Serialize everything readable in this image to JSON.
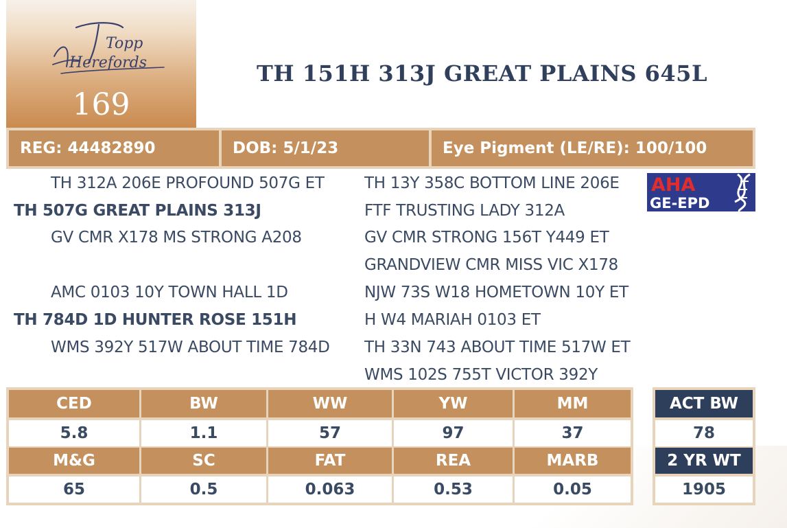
{
  "lot": {
    "number": "169",
    "logo_text_line1": "Topp",
    "logo_text_line2": "Herefords"
  },
  "animal": {
    "name": "TH 151H 313J GREAT PLAINS 645L"
  },
  "info": {
    "reg": "REG: 44482890",
    "dob": "DOB: 5/1/23",
    "eye_pigment": "Eye Pigment (LE/RE): 100/100"
  },
  "pedigree": {
    "sire_side": {
      "sire_sire": "TH 312A 206E PROFOUND 507G ET",
      "sire": "TH 507G GREAT PLAINS 313J",
      "sire_dam": "GV CMR X178 MS STRONG A208",
      "great": [
        "TH 13Y 358C BOTTOM LINE 206E",
        "FTF TRUSTING LADY 312A",
        "GV CMR STRONG 156T Y449 ET",
        "GRANDVIEW CMR MISS VIC X178"
      ]
    },
    "dam_side": {
      "dam_sire": "AMC 0103 10Y TOWN HALL 1D",
      "dam": "TH 784D 1D HUNTER ROSE 151H",
      "dam_dam": "WMS 392Y 517W ABOUT TIME 784D",
      "great": [
        "NJW 73S W18 HOMETOWN 10Y ET",
        "H W4 MARIAH 0103 ET",
        "TH 33N 743 ABOUT TIME 517W ET",
        "WMS 102S 755T VICTOR 392Y"
      ]
    }
  },
  "aha_logo": {
    "line1": "AHA",
    "line2": "GE-EPD"
  },
  "epd": {
    "row1_headers": [
      "CED",
      "BW",
      "WW",
      "YW",
      "MM"
    ],
    "row1_values": [
      "5.8",
      "1.1",
      "57",
      "97",
      "37"
    ],
    "row2_headers": [
      "M&G",
      "SC",
      "FAT",
      "REA",
      "MARB"
    ],
    "row2_values": [
      "65",
      "0.5",
      "0.063",
      "0.53",
      "0.05"
    ]
  },
  "actuals": {
    "act_bw_label": "ACT BW",
    "act_bw_value": "78",
    "two_yr_wt_label": "2 YR WT",
    "two_yr_wt_value": "1905"
  },
  "colors": {
    "tan": "#c4915e",
    "tan_light": "#e8d3bb",
    "navy": "#2e3f5c",
    "text": "#3b4a63"
  }
}
